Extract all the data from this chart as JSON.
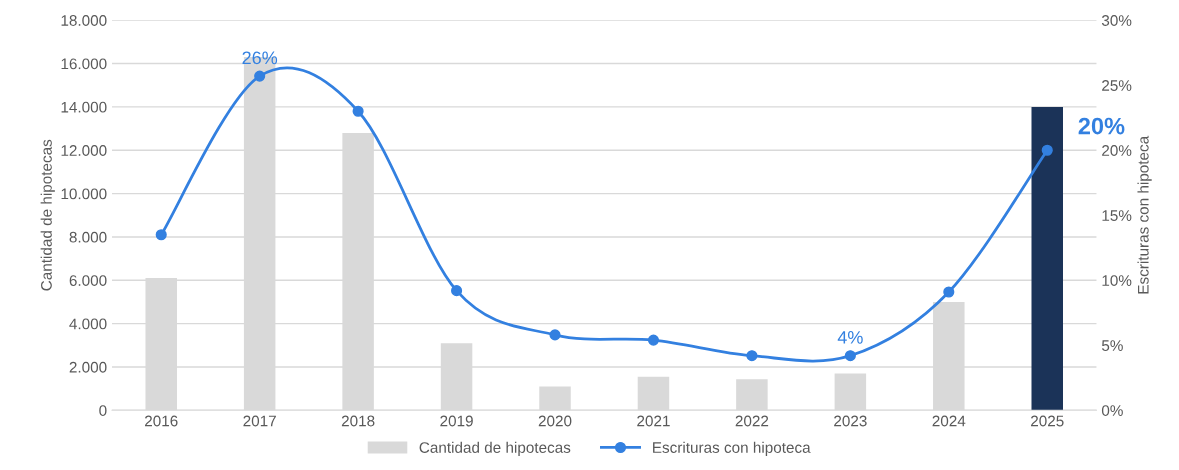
{
  "chart_data": {
    "type": "bar",
    "categories": [
      "2016",
      "2017",
      "2018",
      "2019",
      "2020",
      "2021",
      "2022",
      "2023",
      "2024",
      "2025"
    ],
    "ylabel": "Cantidad de hipotecas",
    "y2label": "Escrituras con hipoteca",
    "ylim": [
      0,
      18000
    ],
    "yticks": [
      {
        "value": 0,
        "label": "0"
      },
      {
        "value": 2000,
        "label": "2.000"
      },
      {
        "value": 4000,
        "label": "4.000"
      },
      {
        "value": 6000,
        "label": "6.000"
      },
      {
        "value": 8000,
        "label": "8.000"
      },
      {
        "value": 10000,
        "label": "10.000"
      },
      {
        "value": 12000,
        "label": "12.000"
      },
      {
        "value": 14000,
        "label": "14.000"
      },
      {
        "value": 16000,
        "label": "16.000"
      },
      {
        "value": 18000,
        "label": "18.000"
      }
    ],
    "y2lim": [
      0,
      30
    ],
    "y2ticks": [
      {
        "value": 0,
        "label": "0%"
      },
      {
        "value": 5,
        "label": "5%"
      },
      {
        "value": 10,
        "label": "10%"
      },
      {
        "value": 15,
        "label": "15%"
      },
      {
        "value": 20,
        "label": "20%"
      },
      {
        "value": 25,
        "label": "25%"
      },
      {
        "value": 30,
        "label": "30%"
      }
    ],
    "grid": "y",
    "legend": "bottom",
    "series": [
      {
        "name": "Cantidad de hipotecas",
        "color": "#d9d9d9",
        "colors": [
          "#d9d9d9",
          "#d9d9d9",
          "#d9d9d9",
          "#d9d9d9",
          "#d9d9d9",
          "#d9d9d9",
          "#d9d9d9",
          "#d9d9d9",
          "#d9d9d9",
          "#1b3358"
        ],
        "values": [
          6100,
          16300,
          12800,
          3100,
          1100,
          1550,
          1430,
          1700,
          5000,
          14000
        ]
      },
      {
        "name": "Escrituras con hipoteca",
        "type": "line",
        "axis": "y2",
        "color": "#3380e0",
        "marker": "circle",
        "line_style": "solid",
        "values": [
          13.5,
          25.7,
          23.0,
          9.2,
          5.8,
          5.4,
          4.2,
          4.2,
          9.1,
          20.0
        ],
        "value_labels": [
          null,
          "26%",
          null,
          null,
          null,
          null,
          null,
          "4%",
          null,
          "20%"
        ]
      }
    ]
  }
}
